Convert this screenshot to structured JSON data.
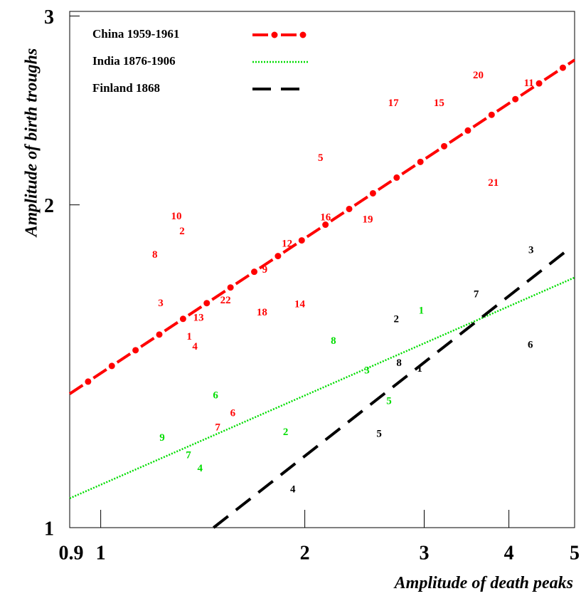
{
  "chart_data": {
    "type": "scatter",
    "x_label": "Amplitude of death peaks",
    "y_label": "Amplitude of birth troughs",
    "xlim": [
      0.9,
      5
    ],
    "ylim": [
      1,
      3.03
    ],
    "log_x": true,
    "log_y": true,
    "xticks": [
      0.9,
      1,
      2,
      3,
      4,
      5
    ],
    "yticks": [
      1,
      2,
      3
    ],
    "legend": "upper left",
    "series": [
      {
        "name": "China 1959-1961",
        "color": "#ff0000",
        "style": "dash-dot",
        "fit": {
          "x": [
            0.9,
            5
          ],
          "y": [
            1.333,
            2.73
          ]
        },
        "labels": [
          "10",
          "2",
          "8",
          "3",
          "13",
          "1",
          "4",
          "22",
          "18",
          "14",
          "9",
          "12",
          "16",
          "19",
          "5",
          "17",
          "15",
          "20",
          "11",
          "21",
          "6",
          "7"
        ],
        "x": [
          1.293,
          1.318,
          1.202,
          1.226,
          1.394,
          1.351,
          1.377,
          1.528,
          1.729,
          1.966,
          1.746,
          1.883,
          2.146,
          2.476,
          2.11,
          2.702,
          3.155,
          3.605,
          4.281,
          3.794,
          1.566,
          1.488
        ],
        "y": [
          1.949,
          1.887,
          1.794,
          1.617,
          1.568,
          1.505,
          1.473,
          1.627,
          1.585,
          1.614,
          1.738,
          1.838,
          1.945,
          1.936,
          2.209,
          2.486,
          2.486,
          2.638,
          2.594,
          2.094,
          1.277,
          1.239
        ]
      },
      {
        "name": "India 1876-1906",
        "color": "#00dd00",
        "style": "dotted",
        "fit": {
          "x": [
            0.9,
            5
          ],
          "y": [
            1.065,
            1.711
          ]
        },
        "labels": [
          "1",
          "8",
          "3",
          "5",
          "6",
          "2",
          "9",
          "7",
          "4"
        ],
        "x": [
          2.97,
          2.204,
          2.47,
          2.662,
          1.477,
          1.874,
          1.232,
          1.347,
          1.401
        ],
        "y": [
          1.592,
          1.491,
          1.4,
          1.311,
          1.327,
          1.226,
          1.211,
          1.167,
          1.134
        ]
      },
      {
        "name": "Finland 1868",
        "color": "#000000",
        "style": "dashed",
        "fit": {
          "x": [
            1.467,
            4.87
          ],
          "y": [
            1,
            1.813
          ]
        },
        "labels": [
          "3",
          "7",
          "2",
          "8",
          "1",
          "6",
          "5",
          "4"
        ],
        "x": [
          4.312,
          3.579,
          2.729,
          2.754,
          2.954,
          4.302,
          2.574,
          1.92
        ],
        "y": [
          1.813,
          1.649,
          1.563,
          1.422,
          1.405,
          1.479,
          1.222,
          1.084
        ]
      }
    ]
  }
}
